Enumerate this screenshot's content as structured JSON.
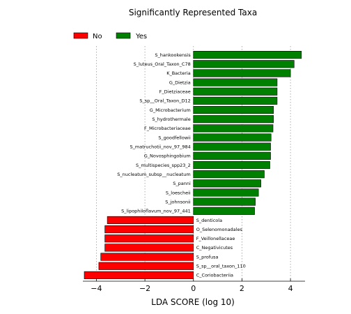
{
  "chart_data": {
    "type": "bar",
    "orientation": "horizontal",
    "title": "Significantly Represented Taxa",
    "xlabel": "LDA SCORE (log 10)",
    "ylabel": "",
    "xlim": [
      -4.5,
      4.6
    ],
    "xticks": [
      -4,
      -2,
      0,
      2,
      4
    ],
    "xtick_labels": [
      "−4",
      "−2",
      "0",
      "2",
      "4"
    ],
    "grid": "vertical-dotted",
    "legend": {
      "placement": "top-left",
      "entries": [
        {
          "name": "No",
          "color": "#ff0000"
        },
        {
          "name": "Yes",
          "color": "#008000"
        }
      ]
    },
    "categories": [
      "S_hankookensis",
      "S_luteus_Oral_Taxon_C78",
      "K_Bacteria",
      "G_Dietzia",
      "F_Dietziaceae",
      "S_sp__Oral_Taxon_D12",
      "G_Microbacterium",
      "S_hydrothermale",
      "F_Microbacteriaceae",
      "S_goodfellowii",
      "S_matruchotii_nov_97_984",
      "G_Novosphingobium",
      "S_multispecies_spp23_2",
      "S_nucleatum_subsp__nucleatum",
      "S_panni",
      "S_loescheii",
      "S_johnsonii",
      "S_lipophiloflavum_nov_97_441",
      "S_denticola",
      "O_Selenomonadales",
      "F_Veillonellaceae",
      "C_Negativicutes",
      "S_profusa",
      "S_sp__oral_taxon_110",
      "C_Coriobacteriia"
    ],
    "values": [
      4.45,
      4.15,
      4.0,
      3.45,
      3.45,
      3.45,
      3.3,
      3.3,
      3.28,
      3.2,
      3.18,
      3.18,
      3.15,
      2.92,
      2.78,
      2.68,
      2.55,
      2.52,
      -3.55,
      -3.65,
      -3.65,
      -3.65,
      -3.82,
      -3.9,
      -4.5
    ],
    "groups": [
      "Yes",
      "Yes",
      "Yes",
      "Yes",
      "Yes",
      "Yes",
      "Yes",
      "Yes",
      "Yes",
      "Yes",
      "Yes",
      "Yes",
      "Yes",
      "Yes",
      "Yes",
      "Yes",
      "Yes",
      "Yes",
      "No",
      "No",
      "No",
      "No",
      "No",
      "No",
      "No"
    ]
  }
}
